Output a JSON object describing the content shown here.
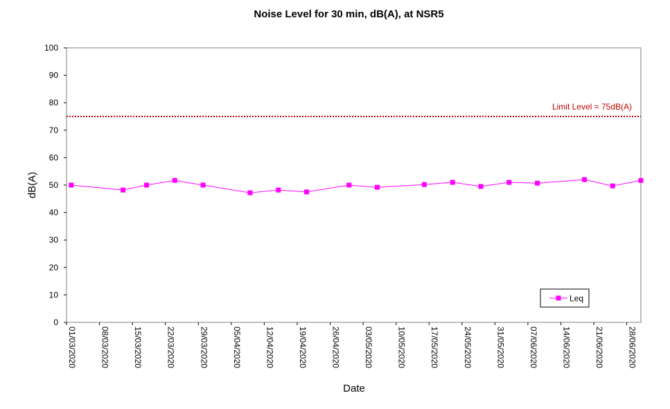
{
  "chart_data": {
    "type": "line",
    "title": "Noise Level for 30 min, dB(A), at NSR5",
    "xlabel": "Date",
    "ylabel": "dB(A)",
    "ylim": [
      0,
      100
    ],
    "y_ticks": [
      0,
      10,
      20,
      30,
      40,
      50,
      60,
      70,
      80,
      90,
      100
    ],
    "x_range": [
      "2020-03-01",
      "2020-07-01"
    ],
    "x_tick_labels": [
      "01/03/2020",
      "08/03/2020",
      "15/03/2020",
      "22/03/2020",
      "29/03/2020",
      "05/04/2020",
      "12/04/2020",
      "19/04/2020",
      "26/04/2020",
      "03/05/2020",
      "10/05/2020",
      "17/05/2020",
      "24/05/2020",
      "31/05/2020",
      "07/06/2020",
      "14/06/2020",
      "21/06/2020",
      "28/06/2020"
    ],
    "grid": false,
    "legend_position": "bottom-right",
    "limit": {
      "value": 75,
      "label": "Limit Level  = 75dB(A)",
      "color": "#c00000"
    },
    "series": [
      {
        "name": "Leq",
        "color": "#ff00ff",
        "x": [
          "2020-03-02",
          "2020-03-13",
          "2020-03-18",
          "2020-03-24",
          "2020-03-30",
          "2020-04-09",
          "2020-04-15",
          "2020-04-21",
          "2020-04-30",
          "2020-05-06",
          "2020-05-16",
          "2020-05-22",
          "2020-05-28",
          "2020-06-03",
          "2020-06-09",
          "2020-06-19",
          "2020-06-25",
          "2020-07-01"
        ],
        "values": [
          50.0,
          48.2,
          50.0,
          51.7,
          50.0,
          47.2,
          48.2,
          47.5,
          50.0,
          49.2,
          50.2,
          51.0,
          49.5,
          51.0,
          50.7,
          52.0,
          49.7,
          51.7
        ]
      }
    ]
  }
}
